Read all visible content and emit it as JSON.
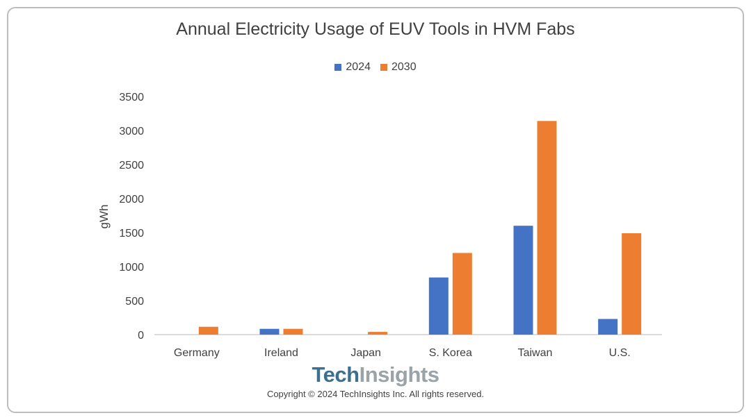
{
  "chart_data": {
    "type": "bar",
    "title": "Annual Electricity Usage of EUV Tools in HVM Fabs",
    "ylabel": "gWh",
    "xlabel": "",
    "categories": [
      "Germany",
      "Ireland",
      "Japan",
      "S. Korea",
      "Taiwan",
      "U.S."
    ],
    "series": [
      {
        "name": "2024",
        "color": "#4472c4",
        "values": [
          0,
          85,
          0,
          840,
          1600,
          230
        ]
      },
      {
        "name": "2030",
        "color": "#ed7d31",
        "values": [
          115,
          85,
          40,
          1200,
          3140,
          1490
        ]
      }
    ],
    "ylim": [
      0,
      3500
    ],
    "yticks": [
      "0",
      "500",
      "1000",
      "1500",
      "2000",
      "2500",
      "3000",
      "3500"
    ],
    "legend": "top-center",
    "grid": false
  },
  "footer": {
    "brand_part1": "Tech",
    "brand_part2": "Insights",
    "copyright": "Copyright © 2024 TechInsights Inc.  All rights reserved."
  }
}
